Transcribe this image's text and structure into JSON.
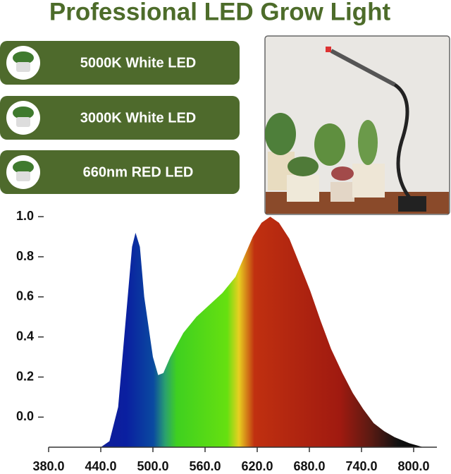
{
  "header": {
    "title": "Professional LED Grow Light"
  },
  "badges": [
    "5000K White LED",
    "3000K White LED",
    "660nm RED LED"
  ],
  "chart_data": {
    "type": "area",
    "x": [
      440,
      450,
      460,
      470,
      476,
      480,
      485,
      490,
      500,
      506,
      512,
      520,
      535,
      550,
      565,
      580,
      595,
      605,
      615,
      625,
      635,
      645,
      657,
      670,
      681,
      693,
      705,
      718,
      730,
      742,
      754,
      766,
      778,
      795,
      811
    ],
    "values": [
      -0.15,
      -0.12,
      0.05,
      0.55,
      0.85,
      0.92,
      0.85,
      0.6,
      0.3,
      0.21,
      0.22,
      0.3,
      0.42,
      0.5,
      0.56,
      0.62,
      0.7,
      0.8,
      0.9,
      0.97,
      1.0,
      0.97,
      0.89,
      0.75,
      0.63,
      0.48,
      0.34,
      0.22,
      0.12,
      0.04,
      -0.03,
      -0.07,
      -0.1,
      -0.13,
      -0.15
    ],
    "xlim": [
      380,
      830
    ],
    "ylim": [
      -0.15,
      1.05
    ],
    "xticks": [
      {
        "value": 380,
        "label": "380.0"
      },
      {
        "value": 440,
        "label": "440.0"
      },
      {
        "value": 500,
        "label": "500.0"
      },
      {
        "value": 560,
        "label": "560.0"
      },
      {
        "value": 620,
        "label": "620.0"
      },
      {
        "value": 680,
        "label": "680.0"
      },
      {
        "value": 740,
        "label": "740.0"
      },
      {
        "value": 800,
        "label": "800.0"
      }
    ],
    "yticks": [
      {
        "value": 0,
        "label": "0.0"
      },
      0.2,
      0.4,
      0.6,
      0.8,
      {
        "value": 1,
        "label": "1.0"
      }
    ],
    "grid": false
  }
}
